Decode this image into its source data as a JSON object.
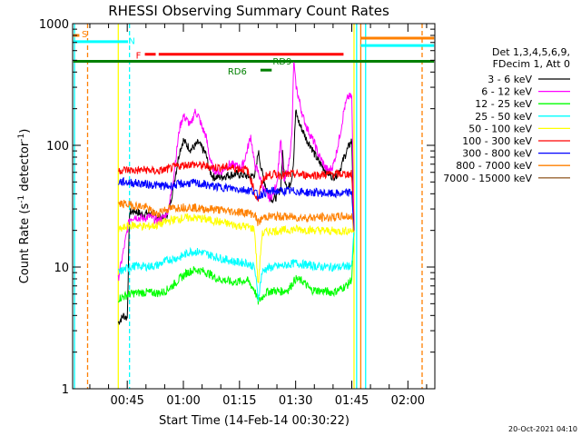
{
  "chart_data": {
    "type": "line",
    "title": "RHESSI Observing Summary Count Rates",
    "xlabel": "Start Time (14-Feb-14 00:30:22)",
    "ylabel_main": "Count Rate (s",
    "ylabel_sup1": "-1",
    "ylabel_mid": " detector",
    "ylabel_sup2": "-1",
    "ylabel_end": ")",
    "footer": "20-Oct-2021 04:10",
    "xlim": [
      30.4,
      127.2
    ],
    "ylim": [
      1,
      1000
    ],
    "yscale": "log",
    "x_ticks": [
      {
        "v": 45,
        "label": "00:45"
      },
      {
        "v": 60,
        "label": "01:00"
      },
      {
        "v": 75,
        "label": "01:15"
      },
      {
        "v": 90,
        "label": "01:30"
      },
      {
        "v": 105,
        "label": "01:45"
      },
      {
        "v": 120,
        "label": "02:00"
      }
    ],
    "y_ticks": [
      {
        "v": 1,
        "label": "1"
      },
      {
        "v": 10,
        "label": "10"
      },
      {
        "v": 100,
        "label": "100"
      },
      {
        "v": 1000,
        "label": "1000"
      }
    ],
    "legend_header": [
      "Det 1,3,4,5,6,9,",
      "FDecim 1, Att 0"
    ],
    "series": [
      {
        "name": "3 - 6 keV",
        "color": "#000000",
        "x": [
          42.6,
          44,
          45,
          45.6,
          47,
          49,
          51,
          53,
          55,
          56,
          57,
          58,
          59,
          60,
          61,
          62,
          64,
          66,
          67,
          68,
          70,
          72,
          74,
          75,
          77,
          78,
          79,
          79.5,
          80,
          81,
          82,
          83,
          84,
          85,
          86,
          86.5,
          87,
          88,
          89,
          89.5,
          90,
          91,
          92,
          93,
          94,
          95,
          96,
          97,
          98,
          99,
          100,
          101,
          102,
          103,
          104,
          105,
          105.6
        ],
        "y": [
          3.5,
          4,
          3.8,
          28,
          29,
          27,
          28,
          26,
          25,
          29,
          40,
          60,
          90,
          110,
          100,
          92,
          105,
          85,
          62,
          55,
          55,
          57,
          58,
          58,
          56,
          55,
          58,
          65,
          90,
          60,
          46,
          38,
          36,
          38,
          45,
          85,
          55,
          44,
          55,
          80,
          190,
          150,
          130,
          110,
          100,
          85,
          75,
          68,
          62,
          58,
          55,
          58,
          65,
          80,
          95,
          110,
          20
        ]
      },
      {
        "name": "6 - 12 keV",
        "color": "#ff00ff",
        "x": [
          42.6,
          45.6,
          47,
          49,
          51,
          53,
          55,
          56,
          57,
          58,
          59,
          60,
          61,
          62,
          63,
          64,
          65,
          66,
          67,
          68,
          70,
          72,
          74,
          75,
          76,
          77,
          78,
          79,
          79.5,
          80,
          81,
          82,
          83,
          84,
          85,
          86,
          86.5,
          87,
          88,
          89,
          89.5,
          90,
          91,
          92,
          93,
          94,
          95,
          96,
          97,
          98,
          99,
          100,
          101,
          102,
          103,
          104,
          105,
          105.6
        ],
        "y": [
          8,
          25,
          26,
          25,
          26,
          24,
          26,
          30,
          45,
          80,
          140,
          175,
          160,
          145,
          190,
          175,
          140,
          120,
          80,
          63,
          60,
          70,
          68,
          66,
          70,
          90,
          120,
          70,
          65,
          60,
          48,
          40,
          37,
          40,
          50,
          115,
          65,
          50,
          65,
          120,
          500,
          320,
          230,
          170,
          140,
          120,
          105,
          85,
          75,
          65,
          62,
          68,
          90,
          130,
          200,
          250,
          250,
          20
        ]
      },
      {
        "name": "12 - 25 keV",
        "color": "#00ff00",
        "x": [
          42.6,
          45.6,
          47,
          50,
          53,
          55,
          57,
          59,
          61,
          63,
          65,
          67,
          69,
          71,
          73,
          75,
          77,
          79,
          80,
          81,
          82,
          84,
          86,
          88,
          90,
          92,
          94,
          96,
          98,
          100,
          102,
          104,
          105,
          105.6
        ],
        "y": [
          5.5,
          6,
          6.1,
          6.2,
          6.1,
          6.3,
          7,
          8,
          9,
          9.5,
          9.3,
          8.8,
          8,
          7.8,
          7.5,
          7.6,
          7.8,
          6.5,
          5.2,
          5.6,
          6.2,
          6.4,
          6.3,
          6.5,
          8,
          7.6,
          6.5,
          6.4,
          6.3,
          6.2,
          6.6,
          7.2,
          8,
          20
        ]
      },
      {
        "name": "25 - 50 keV",
        "color": "#00ffff",
        "x": [
          42.6,
          45.6,
          47,
          50,
          53,
          56,
          59,
          62,
          65,
          68,
          71,
          74,
          77,
          79,
          80,
          81,
          82,
          84,
          87,
          90,
          93,
          96,
          99,
          102,
          105,
          105.6
        ],
        "y": [
          9,
          10,
          10.2,
          10.1,
          10.3,
          11.5,
          12,
          13.5,
          13.2,
          12.3,
          11.6,
          11,
          10.8,
          10,
          5.5,
          9,
          9.7,
          10,
          10.3,
          10.8,
          10.4,
          10.1,
          10,
          10,
          10.3,
          20
        ]
      },
      {
        "name": "50 - 100 keV",
        "color": "#ffff00",
        "x": [
          42.6,
          45.6,
          47,
          50,
          53,
          56,
          59,
          62,
          65,
          68,
          71,
          74,
          77,
          79,
          80,
          81,
          82,
          84,
          87,
          90,
          93,
          96,
          99,
          102,
          105,
          105.6
        ],
        "y": [
          20,
          22,
          22,
          21.5,
          22,
          24,
          25,
          25.5,
          25,
          24,
          23,
          22,
          21.5,
          20.5,
          7,
          18.5,
          19.5,
          19.8,
          20,
          20.5,
          20.2,
          20,
          19.8,
          19.7,
          20,
          20
        ]
      },
      {
        "name": "100 - 300 keV",
        "color": "#ff0000",
        "x": [
          42.6,
          44,
          47,
          50,
          53,
          56,
          59,
          62,
          65,
          68,
          71,
          74,
          77,
          78.5,
          79,
          80,
          81,
          82,
          84,
          87,
          90,
          93,
          96,
          99,
          102,
          105,
          105.6
        ],
        "y": [
          62,
          63,
          62,
          63,
          61,
          64,
          68,
          70,
          68,
          66,
          66,
          65,
          63,
          48,
          40,
          36,
          50,
          56,
          58,
          57,
          58,
          57,
          57,
          58,
          58,
          58,
          20
        ]
      },
      {
        "name": "300 - 800 keV",
        "color": "#0000ff",
        "x": [
          42.6,
          44,
          47,
          50,
          53,
          56,
          59,
          62,
          65,
          68,
          71,
          74,
          77,
          79,
          80,
          81,
          82,
          84,
          87,
          90,
          93,
          96,
          99,
          102,
          105,
          105.6
        ],
        "y": [
          50,
          50,
          49,
          48,
          47,
          46,
          48,
          49,
          48,
          46,
          45,
          44,
          43,
          42,
          38,
          40,
          41,
          42,
          42,
          42,
          41,
          41,
          40,
          40,
          41,
          20
        ]
      },
      {
        "name": "800 - 7000 keV",
        "color": "#ff8000",
        "x": [
          42.6,
          44,
          47,
          50,
          52,
          53,
          54,
          56,
          59,
          62,
          65,
          68,
          71,
          74,
          77,
          79,
          80,
          81,
          82,
          84,
          87,
          90,
          93,
          96,
          99,
          102,
          105,
          105.6
        ],
        "y": [
          33,
          33,
          32,
          31,
          28,
          27,
          29,
          30,
          31,
          31,
          30,
          30,
          29,
          28.5,
          28,
          27,
          23,
          25,
          26,
          26,
          26,
          25.5,
          25.5,
          25.5,
          25.5,
          26,
          26,
          20
        ]
      },
      {
        "name": "7000 - 15000 keV",
        "color": "#996633",
        "x": [],
        "y": []
      }
    ],
    "annotations": [
      {
        "text": "S",
        "color": "#ff8000",
        "bar": {
          "x1": 30.6,
          "x2": 32.2,
          "y": 800
        },
        "label_at": {
          "x": 33.6,
          "y": 830
        }
      },
      {
        "text": "N",
        "color": "#00ffff",
        "bar": {
          "x1": 30.6,
          "x2": 45.2,
          "y": 710
        },
        "label_at": {
          "x": 46.2,
          "y": 730
        }
      },
      {
        "text": "F",
        "color": "#ff0000",
        "bar": {
          "x1": 49.7,
          "x2": 52.6,
          "y": 560
        },
        "label_at": {
          "x": 48,
          "y": 555
        }
      },
      {
        "text": "",
        "color": "#ff0000",
        "bar": {
          "x1": 53.4,
          "x2": 102.8,
          "y": 560
        },
        "label_at": null
      },
      {
        "text": "",
        "color": "#008000",
        "bar": {
          "x1": 30.6,
          "x2": 127.0,
          "y": 490
        },
        "label_at": null
      },
      {
        "text": "RD9",
        "color": "#008000",
        "bar": null,
        "label_at": {
          "x": 86.4,
          "y": 495
        }
      },
      {
        "text": "RD6",
        "color": "#008000",
        "bar": {
          "x1": 80.6,
          "x2": 83.6,
          "y": 415
        },
        "label_at": {
          "x": 74.4,
          "y": 410
        }
      },
      {
        "text": "",
        "color": "#ff8000",
        "bar": {
          "x1": 107.4,
          "x2": 127.0,
          "y": 760
        },
        "label_at": null
      },
      {
        "text": "",
        "color": "#00ffff",
        "bar": {
          "x1": 107.4,
          "x2": 127.0,
          "y": 660
        },
        "label_at": null
      }
    ],
    "vlines": [
      {
        "x": 30.9,
        "color": "#00ffff",
        "dash": false
      },
      {
        "x": 34.4,
        "color": "#ff8000",
        "dash": true
      },
      {
        "x": 42.6,
        "color": "#ffff00",
        "dash": false
      },
      {
        "x": 45.6,
        "color": "#00ffff",
        "dash": true
      },
      {
        "x": 105.6,
        "color": "#ffff00",
        "dash": false
      },
      {
        "x": 106.3,
        "color": "#00ffff",
        "dash": false
      },
      {
        "x": 107.4,
        "color": "#ff8000",
        "dash": false
      },
      {
        "x": 108.7,
        "color": "#00ffff",
        "dash": false
      },
      {
        "x": 123.8,
        "color": "#ff8000",
        "dash": true
      }
    ]
  }
}
